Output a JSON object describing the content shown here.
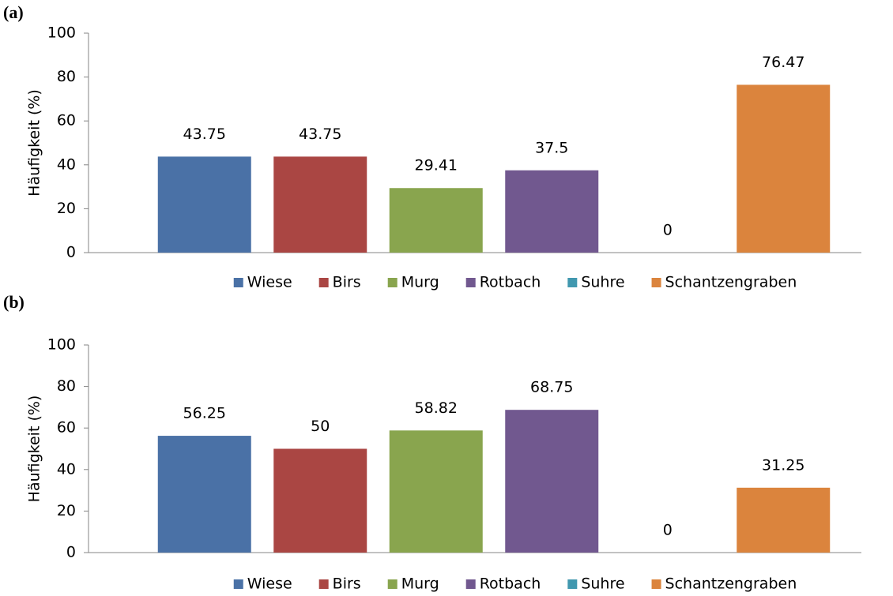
{
  "chart_data": [
    {
      "type": "bar",
      "panel": "(a)",
      "ylabel": "Häufigkeit (%)",
      "ylim": [
        0,
        100
      ],
      "yticks": [
        0,
        20,
        40,
        60,
        80,
        100
      ],
      "series": [
        {
          "name": "Wiese",
          "color": "#4a71a6",
          "values": [
            43.75
          ]
        },
        {
          "name": "Birs",
          "color": "#aa4643",
          "values": [
            43.75
          ]
        },
        {
          "name": "Murg",
          "color": "#89a54e",
          "values": [
            29.41
          ]
        },
        {
          "name": "Rotbach",
          "color": "#71588f",
          "values": [
            37.5
          ]
        },
        {
          "name": "Suhre",
          "color": "#4198af",
          "values": [
            0
          ]
        },
        {
          "name": "Schantzengraben",
          "color": "#db843d",
          "values": [
            76.47
          ]
        }
      ]
    },
    {
      "type": "bar",
      "panel": "(b)",
      "ylabel": "Häufigkeit (%)",
      "ylim": [
        0,
        100
      ],
      "yticks": [
        0,
        20,
        40,
        60,
        80,
        100
      ],
      "series": [
        {
          "name": "Wiese",
          "color": "#4a71a6",
          "values": [
            56.25
          ]
        },
        {
          "name": "Birs",
          "color": "#aa4643",
          "values": [
            50
          ]
        },
        {
          "name": "Murg",
          "color": "#89a54e",
          "values": [
            58.82
          ]
        },
        {
          "name": "Rotbach",
          "color": "#71588f",
          "values": [
            68.75
          ]
        },
        {
          "name": "Suhre",
          "color": "#4198af",
          "values": [
            0
          ]
        },
        {
          "name": "Schantzengraben",
          "color": "#db843d",
          "values": [
            31.25
          ]
        }
      ]
    }
  ]
}
